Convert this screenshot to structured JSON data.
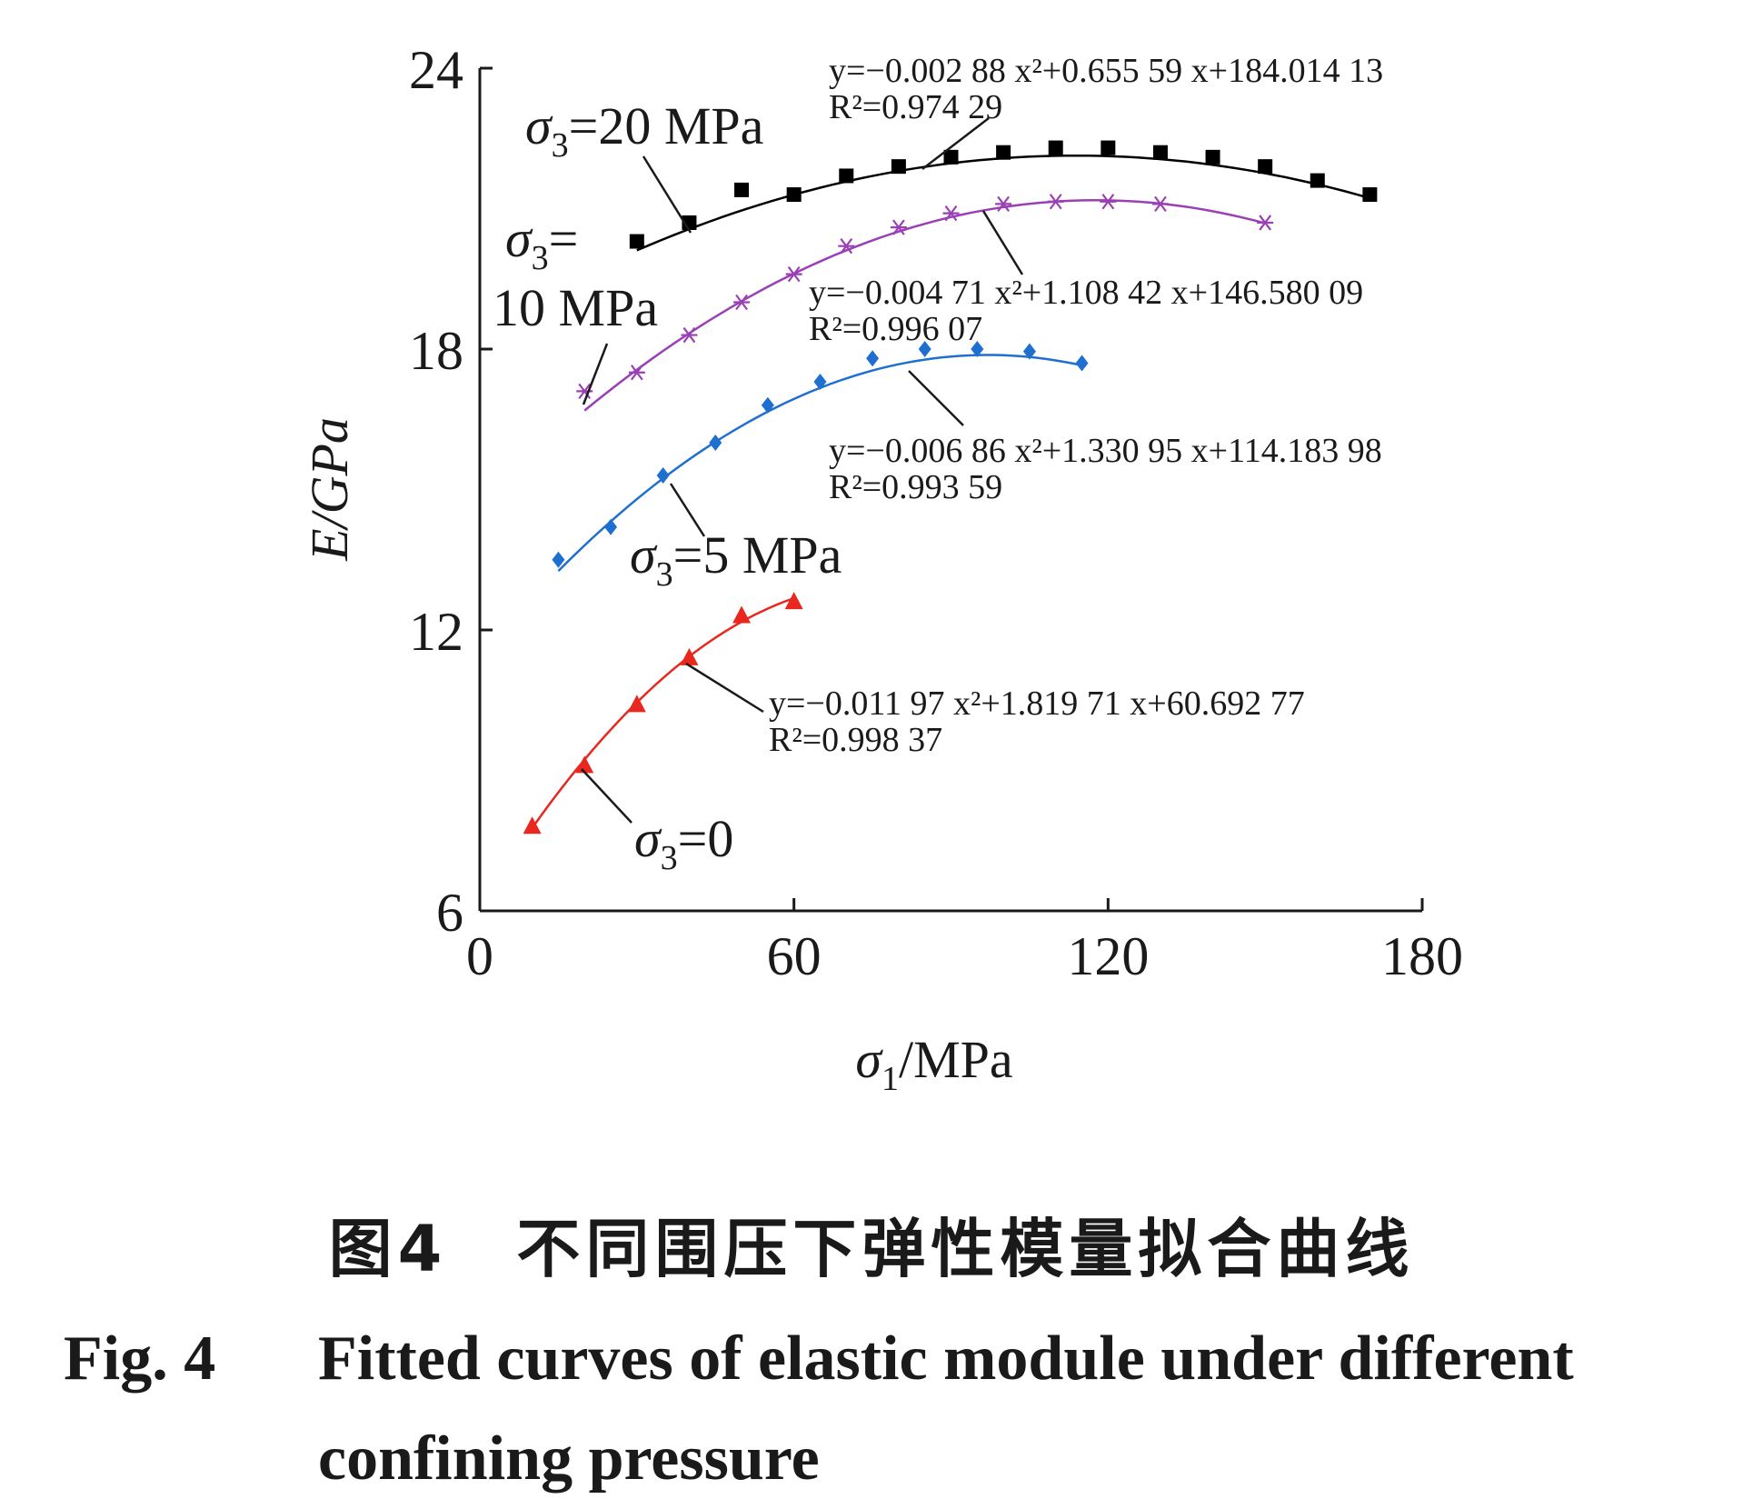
{
  "chart_data": {
    "type": "scatter",
    "xlabel": "/MPa",
    "xlabel_symbol": "σ",
    "xlabel_subscript": "1",
    "ylabel": "E/GPa",
    "xlim": [
      0,
      180
    ],
    "ylim": [
      6,
      24
    ],
    "xticks": [
      "0",
      "60",
      "120",
      "180"
    ],
    "yticks": [
      "6",
      "12",
      "18",
      "24"
    ],
    "grid": false,
    "series": [
      {
        "name": "σ3=0",
        "marker": "triangle",
        "color": "#e8281e",
        "x": [
          10,
          20,
          30,
          40,
          50,
          60
        ],
        "y": [
          7.8,
          9.1,
          10.4,
          11.4,
          12.3,
          12.6
        ],
        "fit": {
          "a": -0.01197,
          "b": 1.81971,
          "c": 60.69277,
          "xmin": 10,
          "xmax": 60
        },
        "equation": "y=−0.011 97 x²+1.819 71 x+60.692 77",
        "r2": "R²=0.998 37"
      },
      {
        "name": "σ3=5 MPa",
        "marker": "diamond",
        "color": "#1e6fd0",
        "x": [
          15,
          25,
          35,
          45,
          55,
          65,
          75,
          85,
          95,
          105,
          115
        ],
        "y": [
          13.5,
          14.2,
          15.3,
          16.0,
          16.8,
          17.3,
          17.8,
          18.0,
          18.0,
          17.95,
          17.7
        ],
        "fit": {
          "a": -0.00686,
          "b": 1.33095,
          "c": 114.18398,
          "xmin": 15,
          "xmax": 115
        },
        "equation": "y=−0.006 86 x²+1.330 95 x+114.183 98",
        "r2": "R²=0.993 59"
      },
      {
        "name": "σ3=10 MPa",
        "marker": "star",
        "color": "#9b3fb5",
        "x": [
          20,
          30,
          40,
          50,
          60,
          70,
          80,
          90,
          100,
          110,
          120,
          130,
          150
        ],
        "y": [
          17.1,
          17.5,
          18.3,
          19.0,
          19.6,
          20.2,
          20.6,
          20.9,
          21.1,
          21.15,
          21.15,
          21.1,
          20.7
        ],
        "fit": {
          "a": -0.00471,
          "b": 1.10842,
          "c": 146.58009,
          "xmin": 20,
          "xmax": 150
        },
        "equation": "y=−0.004 71 x²+1.108 42 x+146.580 09",
        "r2": "R²=0.996 07"
      },
      {
        "name": "σ3=20 MPa",
        "marker": "square",
        "color": "#000000",
        "x": [
          30,
          40,
          50,
          60,
          70,
          80,
          90,
          100,
          110,
          120,
          130,
          140,
          150,
          160,
          170
        ],
        "y": [
          20.3,
          20.7,
          21.4,
          21.3,
          21.7,
          21.9,
          22.1,
          22.2,
          22.3,
          22.3,
          22.2,
          22.1,
          21.9,
          21.6,
          21.3
        ],
        "fit": {
          "a": -0.00288,
          "b": 0.65559,
          "c": 184.01413,
          "xmin": 30,
          "xmax": 170
        },
        "equation": "y=−0.002 88 x²+0.655 59 x+184.014 13",
        "r2": "R²=0.974 29"
      }
    ]
  },
  "labels": {
    "s20": "=20 MPa",
    "s10a": "=",
    "s10b": "10 MPa",
    "s5": "=5 MPa",
    "s0": "=0",
    "sigma": "σ",
    "sub3": "3"
  },
  "caption": {
    "cn": "图4　不同围压下弹性模量拟合曲线",
    "fig_no": "Fig. 4",
    "en_line1": "Fitted curves of elastic module under different",
    "en_line2": "confining pressure"
  }
}
